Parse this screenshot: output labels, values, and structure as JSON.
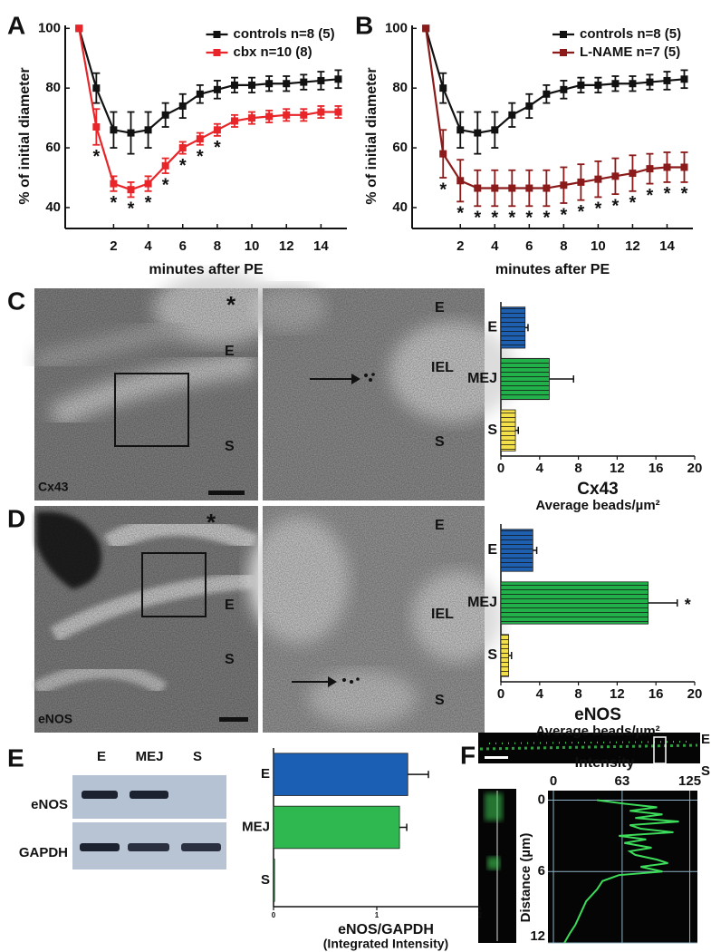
{
  "panels": [
    "A",
    "B",
    "C",
    "D",
    "E",
    "F"
  ],
  "chart_data": [
    {
      "type": "line",
      "x_label": "minutes after PE",
      "y_label": "% of initial diameter",
      "x": [
        0,
        1,
        2,
        3,
        4,
        5,
        6,
        7,
        8,
        9,
        10,
        11,
        12,
        13,
        14,
        15
      ],
      "xlim": [
        -0.8,
        15.5
      ],
      "xticks": [
        2,
        4,
        6,
        8,
        10,
        12,
        14
      ],
      "ylim": [
        33,
        101
      ],
      "yticks": [
        40,
        60,
        80,
        100
      ],
      "marker": "*",
      "series": [
        {
          "name": "controls n=8 (5)",
          "color": "#111111",
          "values": [
            100,
            80,
            66,
            65,
            66,
            71,
            74,
            78,
            79.5,
            81,
            81,
            81.5,
            81.5,
            82,
            82.5,
            83
          ],
          "errors": [
            0,
            5,
            6,
            7,
            6,
            4,
            4,
            3,
            3,
            2.5,
            2.5,
            2.5,
            2.5,
            2.5,
            3,
            3
          ]
        },
        {
          "name": "cbx n=10 (8)",
          "color": "#e8262a",
          "values": [
            100,
            67,
            48,
            46,
            48,
            54,
            60,
            63,
            66,
            69,
            70,
            70.5,
            71,
            71,
            72,
            72
          ],
          "errors": [
            0,
            6,
            2.5,
            2.5,
            2.5,
            2.5,
            2,
            2,
            2,
            2,
            2,
            2,
            2,
            2,
            2,
            2
          ],
          "significant_x": [
            1,
            2,
            3,
            4,
            5,
            6,
            7,
            8
          ]
        }
      ]
    },
    {
      "type": "line",
      "x_label": "minutes after PE",
      "y_label": "% of initial diameter",
      "x": [
        0,
        1,
        2,
        3,
        4,
        5,
        6,
        7,
        8,
        9,
        10,
        11,
        12,
        13,
        14,
        15
      ],
      "xlim": [
        -0.8,
        15.5
      ],
      "xticks": [
        2,
        4,
        6,
        8,
        10,
        12,
        14
      ],
      "ylim": [
        33,
        101
      ],
      "yticks": [
        40,
        60,
        80,
        100
      ],
      "marker": "*",
      "series": [
        {
          "name": "controls n=8 (5)",
          "color": "#111111",
          "values": [
            100,
            80,
            66,
            65,
            66,
            71,
            74,
            78,
            79.5,
            81,
            81,
            81.5,
            81.5,
            82,
            82.5,
            83
          ],
          "errors": [
            0,
            5,
            6,
            7,
            6,
            4,
            4,
            3,
            3,
            2.5,
            2.5,
            2.5,
            2.5,
            2.5,
            3,
            3
          ]
        },
        {
          "name": "L-NAME n=7 (5)",
          "color": "#8b1a1a",
          "values": [
            100,
            58,
            49,
            46.5,
            46.5,
            46.5,
            46.5,
            46.5,
            47.5,
            48.5,
            49.5,
            50.5,
            51.5,
            53,
            53.5,
            53.5
          ],
          "errors": [
            0,
            8,
            7,
            6,
            6,
            6,
            6,
            6,
            6,
            6,
            6,
            6,
            6,
            5,
            5,
            5
          ],
          "significant_x": [
            1,
            2,
            3,
            4,
            5,
            6,
            7,
            8,
            9,
            10,
            11,
            12,
            13,
            14,
            15
          ]
        }
      ]
    },
    {
      "type": "barh",
      "title": "Cx43",
      "x_label": "Average beads/µm²",
      "categories": [
        "E",
        "MEJ",
        "S"
      ],
      "values": [
        2.5,
        5,
        1.5
      ],
      "errors": [
        0.3,
        2.5,
        0.3
      ],
      "colors": [
        "#1f5fb0",
        "#22b04b",
        "#f3df4a"
      ],
      "hatched": true,
      "xlim": [
        0,
        20
      ],
      "xticks": [
        0,
        4,
        8,
        12,
        16,
        20
      ]
    },
    {
      "type": "barh",
      "title": "eNOS",
      "x_label": "Average beads/µm²",
      "categories": [
        "E",
        "MEJ",
        "S"
      ],
      "values": [
        3.3,
        15.2,
        0.8
      ],
      "errors": [
        0.4,
        3,
        0.3
      ],
      "colors": [
        "#1f5fb0",
        "#22b04b",
        "#f3df4a"
      ],
      "hatched": true,
      "marker": "*",
      "significant_categories": [
        1
      ],
      "xlim": [
        0,
        20
      ],
      "xticks": [
        0,
        4,
        8,
        12,
        16,
        20
      ]
    },
    {
      "type": "barh",
      "title": "eNOS/GAPDH",
      "x_label": "(Integrated Intensity)",
      "categories": [
        "E",
        "MEJ",
        "S"
      ],
      "values": [
        1.3,
        1.22,
        0.01
      ],
      "errors": [
        0.2,
        0.07,
        0
      ],
      "colors": [
        "#1a5fb4",
        "#2eb84f",
        "#2eb84f"
      ],
      "hatched": false,
      "xlim": [
        0,
        2
      ],
      "xticks": [
        0,
        1,
        2
      ]
    },
    {
      "type": "profile",
      "title": "Intensity",
      "y_label": "Distance (µm)",
      "color": "#3ddc5a",
      "grid": true,
      "values": [
        40,
        65,
        95,
        70,
        100,
        75,
        115,
        70,
        80,
        110,
        60,
        85,
        65,
        90,
        70,
        75,
        95,
        105,
        80,
        100,
        60,
        45,
        40,
        30,
        25,
        20,
        15,
        10
      ],
      "distance": [
        0,
        0.3,
        0.6,
        0.9,
        1.2,
        1.5,
        1.8,
        2.1,
        2.4,
        2.7,
        3.0,
        3.3,
        3.6,
        4.0,
        4.3,
        4.6,
        5.0,
        5.3,
        5.6,
        6.0,
        6.3,
        6.8,
        7.5,
        8.5,
        9.5,
        10.5,
        11.2,
        12
      ],
      "xlim": [
        -5,
        132
      ],
      "xticks": [
        0,
        63,
        125
      ],
      "ylim": [
        -0.8,
        12
      ],
      "yticks": [
        0,
        6,
        12
      ]
    }
  ],
  "micrographs": [
    {
      "stain": "Cx43",
      "overview_labels": [
        "*",
        "E",
        "S"
      ],
      "detail_labels": [
        "E",
        "IEL",
        "S"
      ]
    },
    {
      "stain": "eNOS",
      "overview_labels": [
        "*",
        "E",
        "S"
      ],
      "detail_labels": [
        "E",
        "IEL",
        "S"
      ]
    }
  ],
  "blot": {
    "lanes": [
      "E",
      "MEJ",
      "S"
    ],
    "rows": [
      "eNOS",
      "GAPDH"
    ]
  },
  "image_F": {
    "labels": [
      "E",
      "S"
    ]
  }
}
